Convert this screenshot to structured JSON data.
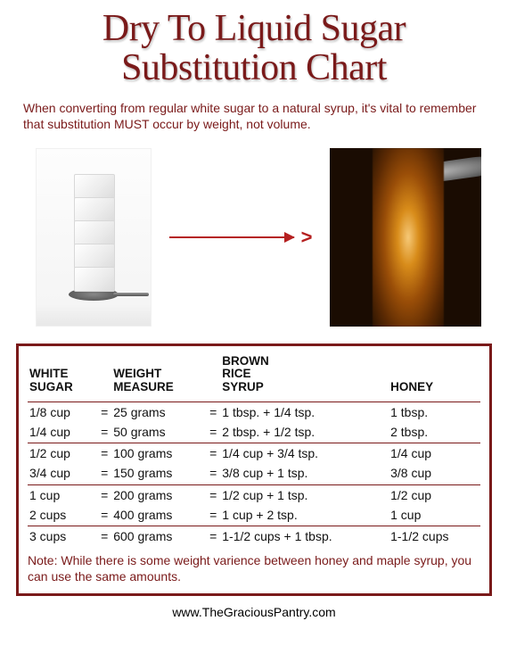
{
  "title_line1": "Dry To Liquid Sugar",
  "title_line2": "Substitution Chart",
  "intro": "When converting from regular white sugar to a natural syrup, it's vital to remember that substitution MUST occur by weight, not volume.",
  "colors": {
    "brand": "#7a1a1a",
    "arrow": "#b52020",
    "text": "#111111",
    "background": "#ffffff"
  },
  "table": {
    "columns": [
      "WHITE SUGAR",
      "WEIGHT MEASURE",
      "BROWN RICE SYRUP",
      "HONEY"
    ],
    "groups": [
      [
        {
          "sugar": "1/8 cup",
          "weight": "25 grams",
          "syrup": "1 tbsp. + 1/4 tsp.",
          "honey": "1 tbsp."
        },
        {
          "sugar": "1/4 cup",
          "weight": "50 grams",
          "syrup": "2 tbsp. + 1/2 tsp.",
          "honey": "2 tbsp."
        }
      ],
      [
        {
          "sugar": "1/2 cup",
          "weight": "100 grams",
          "syrup": "1/4 cup + 3/4 tsp.",
          "honey": "1/4 cup"
        },
        {
          "sugar": "3/4 cup",
          "weight": "150 grams",
          "syrup": "3/8 cup + 1 tsp.",
          "honey": "3/8 cup"
        }
      ],
      [
        {
          "sugar": "1 cup",
          "weight": "200 grams",
          "syrup": "1/2 cup + 1 tsp.",
          "honey": "1/2 cup"
        },
        {
          "sugar": "2 cups",
          "weight": "400 grams",
          "syrup": "1 cup + 2 tsp.",
          "honey": "1 cup"
        }
      ],
      [
        {
          "sugar": "3 cups",
          "weight": "600 grams",
          "syrup": "1-1/2 cups + 1 tbsp.",
          "honey": "1-1/2 cups"
        }
      ]
    ]
  },
  "note": "Note: While there is some weight varience between honey and maple syrup, you can use the same amounts.",
  "footer": "www.TheGraciousPantry.com",
  "eq": "="
}
